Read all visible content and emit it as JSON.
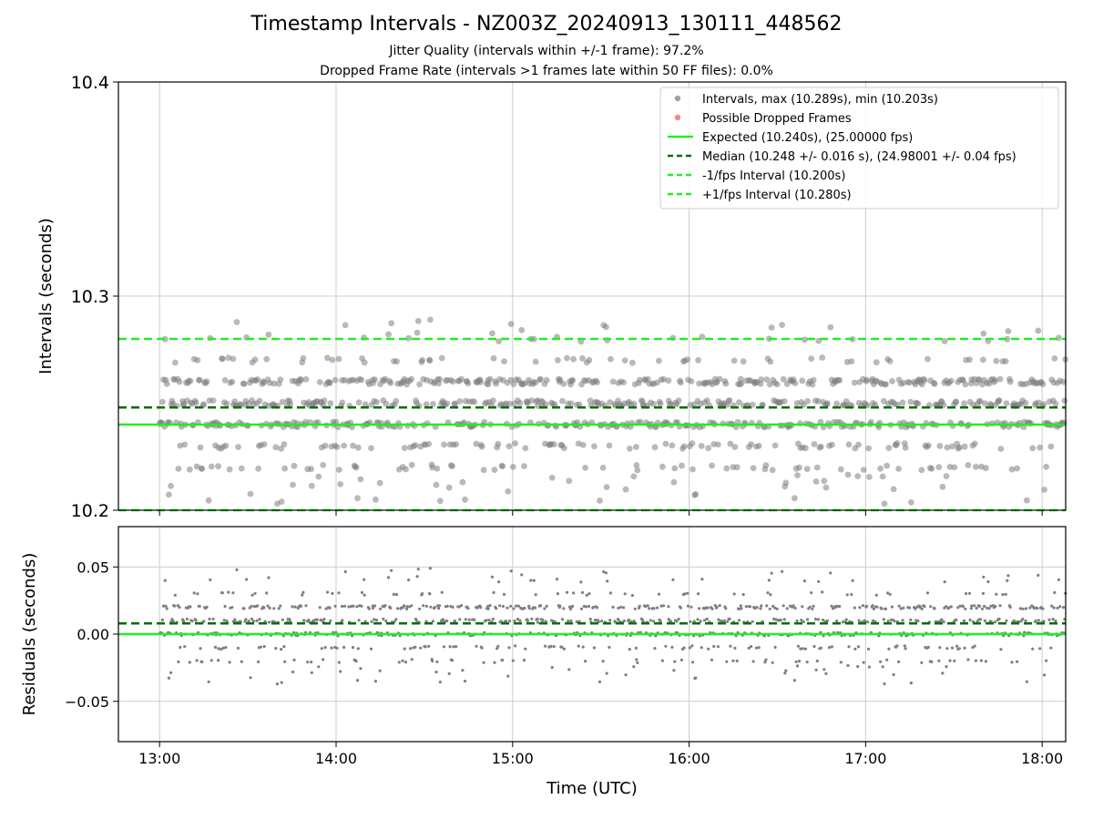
{
  "figure": {
    "title": "Timestamp Intervals - NZ003Z_20240913_130111_448562",
    "subtitle_jitter": "Jitter Quality (intervals within +/-1 frame): 97.2%",
    "subtitle_dropped": "Dropped Frame Rate (intervals >1 frames late within 50 FF files): 0.0%"
  },
  "colors": {
    "points": "#808080",
    "dropped": "#f06060",
    "expected": "#22ee22",
    "median": "#0a6e0a",
    "fps_bounds": "#22ee22",
    "grid": "#cccccc"
  },
  "chart_data": [
    {
      "type": "scatter",
      "ylabel": "Intervals (seconds)",
      "ylim": [
        10.2,
        10.4
      ],
      "yticks": [
        "10.2",
        "10.3",
        "10.4"
      ],
      "xlim": [
        "12:46",
        "18:08"
      ],
      "grid": true,
      "legend_position": "top-right",
      "legend": [
        {
          "label": "Intervals, max (10.289s), min (10.203s)",
          "kind": "marker",
          "color": "#808080"
        },
        {
          "label": "Possible Dropped Frames",
          "kind": "marker",
          "color": "#f06060"
        },
        {
          "label": "Expected (10.240s), (25.00000 fps)",
          "kind": "solid",
          "color": "#22ee22"
        },
        {
          "label": "Median (10.248 +/- 0.016 s), (24.98001 +/- 0.04 fps)",
          "kind": "dashed",
          "color": "#0a6e0a"
        },
        {
          "label": "-1/fps Interval (10.200s)",
          "kind": "dashed",
          "color": "#22ee22"
        },
        {
          "label": "+1/fps Interval (10.280s)",
          "kind": "dashed",
          "color": "#22ee22"
        }
      ],
      "reference_lines": {
        "expected": 10.24,
        "median": 10.248,
        "minus_1_fps": 10.2,
        "plus_1_fps": 10.28
      },
      "series_summary": {
        "x_start": "13:00",
        "x_end": "18:08",
        "max": 10.289,
        "min": 10.203,
        "main_levels": [
          10.22,
          10.23,
          10.24,
          10.25,
          10.26,
          10.27,
          10.28
        ],
        "dropped_frames": 0
      }
    },
    {
      "type": "scatter",
      "xlabel": "Time (UTC)",
      "ylabel": "Residuals (seconds)",
      "ylim": [
        -0.08,
        0.08
      ],
      "yticks": [
        "−0.05",
        "0.00",
        "0.05"
      ],
      "xticks": [
        "13:00",
        "14:00",
        "15:00",
        "16:00",
        "17:00",
        "18:00"
      ],
      "grid": true,
      "reference_lines": {
        "zero": 0.0,
        "median_offset": 0.008
      },
      "series_summary": {
        "max": 0.049,
        "min": -0.037
      }
    }
  ]
}
